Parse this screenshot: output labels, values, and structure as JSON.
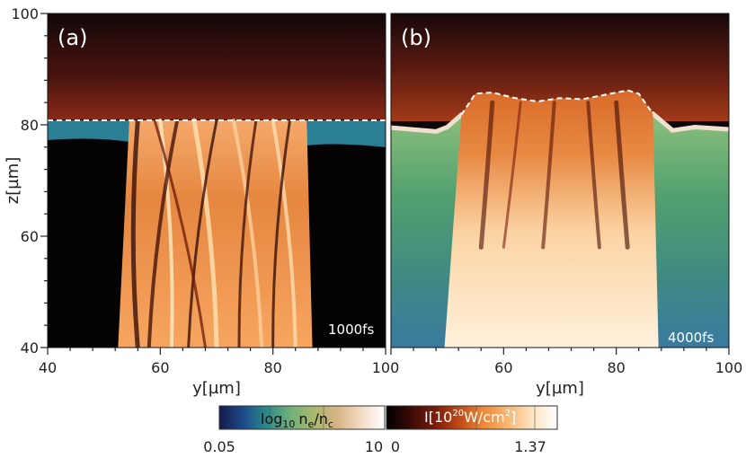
{
  "chart_data": [
    {
      "type": "heatmap",
      "panel_label": "(a)",
      "time_label": "1000fs",
      "xlabel": "y[µm]",
      "ylabel": "z[µm]",
      "xlim": [
        40,
        100
      ],
      "ylim": [
        40,
        100
      ],
      "x_ticks": [
        "40",
        "60",
        "80",
        "100"
      ],
      "y_ticks": [
        "40",
        "60",
        "80",
        "100"
      ],
      "interface_z": [
        [
          40,
          80.8
        ],
        [
          100,
          80.8
        ]
      ],
      "beam_edges": {
        "z": [
          40,
          80.8
        ],
        "left_y": [
          52.5,
          54.5
        ],
        "right_y": [
          87.0,
          86.0
        ]
      },
      "colors": {
        "background": "#050203",
        "plasma": "#2d8a8c",
        "beam_hot": "#ffe2b0",
        "interface": "#ffffff"
      }
    },
    {
      "type": "heatmap",
      "panel_label": "(b)",
      "time_label": "4000fs",
      "xlabel": "y[µm]",
      "ylabel": "",
      "xlim": [
        40,
        100
      ],
      "ylim": [
        40,
        100
      ],
      "x_ticks": [
        "60",
        "80",
        "100"
      ],
      "y_ticks": [],
      "interface_z": [
        [
          52.5,
          81.8
        ],
        [
          55.0,
          85.6
        ],
        [
          58.0,
          85.8
        ],
        [
          62.0,
          84.8
        ],
        [
          66.0,
          84.2
        ],
        [
          70.0,
          84.8
        ],
        [
          74.0,
          84.6
        ],
        [
          78.0,
          85.4
        ],
        [
          82.0,
          86.2
        ],
        [
          84.0,
          85.6
        ],
        [
          86.5,
          82.0
        ]
      ],
      "beam_edges": {
        "z": [
          40,
          85
        ],
        "left_y": [
          49.5,
          55.0
        ],
        "right_y": [
          87.5,
          84.0
        ]
      },
      "plasma_surface_z": [
        [
          40,
          79.5
        ],
        [
          48,
          78.8
        ],
        [
          50,
          79.6
        ],
        [
          52.5,
          81.8
        ],
        [
          86.5,
          82.0
        ],
        [
          90,
          79.0
        ],
        [
          94,
          79.6
        ],
        [
          100,
          79.2
        ]
      ],
      "colors": {
        "background": "#0c0708",
        "plasma": "#4c9a62",
        "beam_hot": "#fff1d8",
        "interface": "#ffffff"
      }
    }
  ],
  "colorbars": {
    "density": {
      "label_main": "log",
      "label_sub": "10",
      "label_ne": "n",
      "label_ne_sub": "e",
      "label_slash": "/n",
      "label_nc_sub": "c",
      "min": "0.05",
      "max": "10",
      "stops": [
        "#141a4a",
        "#1d4a8a",
        "#2a8a8a",
        "#6fb07a",
        "#a8b86c",
        "#d8b484",
        "#f2dcc4",
        "#ffffff"
      ]
    },
    "intensity": {
      "label_main": "I[10",
      "label_sup": "20",
      "label_end": "W/cm",
      "label_sup2": "2",
      "label_close": "]",
      "min": "0",
      "max": "1.37",
      "stops": [
        "#000000",
        "#3a0a06",
        "#7a1c0c",
        "#c24a16",
        "#ee8a3a",
        "#f7b873",
        "#fde4c4",
        "#ffffff"
      ]
    }
  }
}
